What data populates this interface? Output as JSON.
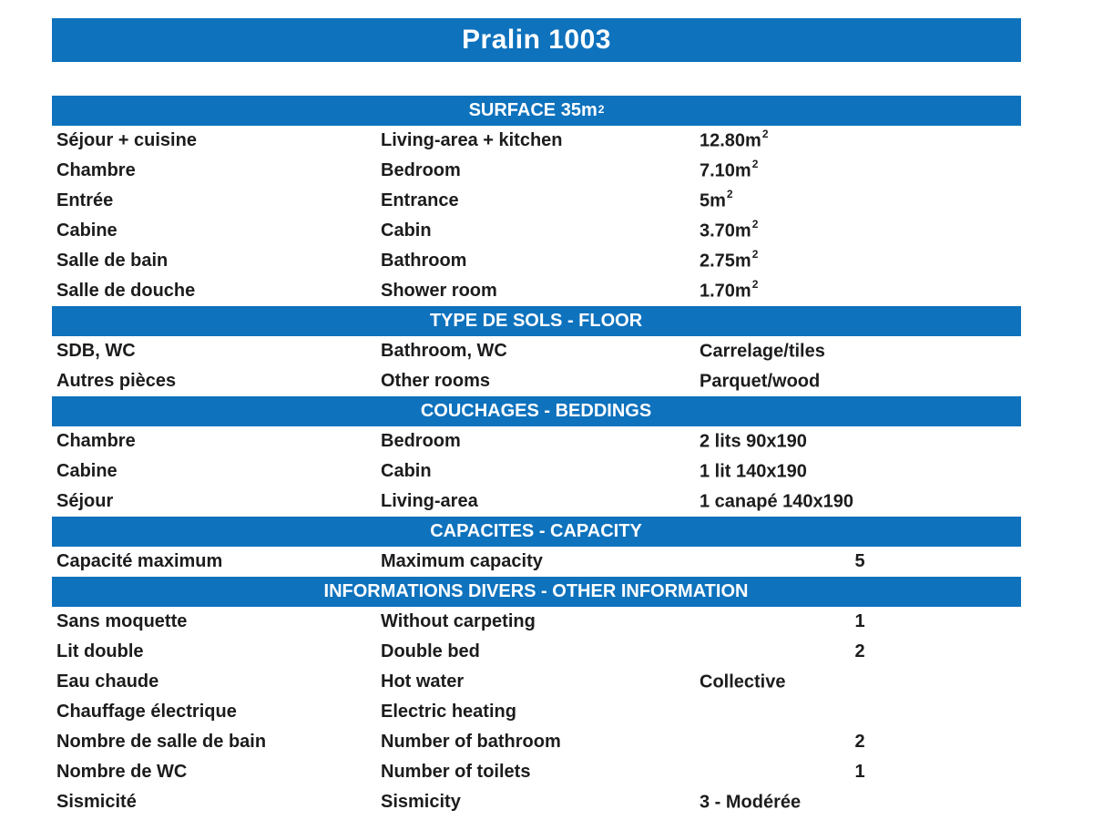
{
  "title": "Pralin 1003",
  "colors": {
    "bar_blue": "#0e72bd",
    "header_text": "#ffffff",
    "body_text": "#1c1c1c",
    "background": "#ffffff"
  },
  "sections": [
    {
      "title": "SURFACE 35m",
      "title_sup": "2",
      "rows": [
        {
          "fr": "Séjour + cuisine",
          "en": "Living-area + kitchen",
          "value": "12.80m",
          "value_sup": "2"
        },
        {
          "fr": "Chambre",
          "en": "Bedroom",
          "value": "7.10m",
          "value_sup": "2"
        },
        {
          "fr": "Entrée",
          "en": "Entrance",
          "value": "5m",
          "value_sup": "2"
        },
        {
          "fr": "Cabine",
          "en": "Cabin",
          "value": "3.70m",
          "value_sup": "2"
        },
        {
          "fr": "Salle de bain",
          "en": "Bathroom",
          "value": "2.75m",
          "value_sup": "2"
        },
        {
          "fr": "Salle de douche",
          "en": "Shower room",
          "value": "1.70m",
          "value_sup": "2"
        }
      ]
    },
    {
      "title": "TYPE DE SOLS - FLOOR",
      "rows": [
        {
          "fr": "SDB, WC",
          "en": "Bathroom, WC",
          "value": "Carrelage/tiles"
        },
        {
          "fr": "Autres pièces",
          "en": "Other rooms",
          "value": "Parquet/wood"
        }
      ]
    },
    {
      "title": "COUCHAGES - BEDDINGS",
      "rows": [
        {
          "fr": "Chambre",
          "en": "Bedroom",
          "value": "2 lits 90x190"
        },
        {
          "fr": "Cabine",
          "en": "Cabin",
          "value": "1 lit 140x190"
        },
        {
          "fr": "Séjour",
          "en": "Living-area",
          "value": "1 canapé 140x190"
        }
      ]
    },
    {
      "title": "CAPACITES - CAPACITY",
      "rows": [
        {
          "fr": "Capacité maximum",
          "en": "Maximum capacity",
          "num": "5"
        }
      ]
    },
    {
      "title": "INFORMATIONS DIVERS - OTHER INFORMATION",
      "rows": [
        {
          "fr": "Sans moquette",
          "en": "Without carpeting",
          "num": "1"
        },
        {
          "fr": "Lit double",
          "en": "Double bed",
          "num": "2"
        },
        {
          "fr": "Eau chaude",
          "en": "Hot water",
          "value": "Collective"
        },
        {
          "fr": "Chauffage électrique",
          "en": "Electric heating"
        },
        {
          "fr": "Nombre de salle de bain",
          "en": "Number of bathroom",
          "num": "2"
        },
        {
          "fr": "Nombre de WC",
          "en": "Number of toilets",
          "num": "1"
        },
        {
          "fr": "Sismicité",
          "en": "Sismicity",
          "value": "3 - Modérée"
        }
      ]
    }
  ]
}
